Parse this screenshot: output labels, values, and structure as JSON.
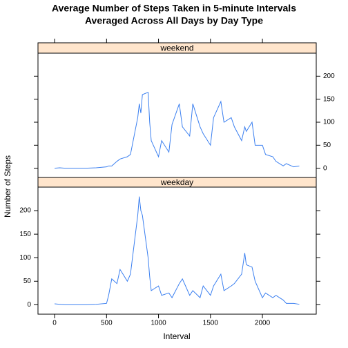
{
  "chart_data": {
    "type": "line",
    "title": [
      "Average Number of Steps Taken in 5-minute Intervals",
      "Averaged Across All Days by Day Type"
    ],
    "x_label": "Interval",
    "y_label": "Number of Steps",
    "layout": "panels",
    "x": [
      0,
      50,
      100,
      200,
      300,
      400,
      500,
      520,
      550,
      600,
      630,
      700,
      730,
      800,
      815,
      830,
      845,
      900,
      915,
      930,
      1000,
      1030,
      1100,
      1130,
      1200,
      1230,
      1300,
      1330,
      1400,
      1430,
      1500,
      1530,
      1600,
      1630,
      1700,
      1730,
      1800,
      1830,
      1845,
      1900,
      1930,
      2000,
      2030,
      2100,
      2130,
      2200,
      2230,
      2300,
      2355
    ],
    "series": [
      {
        "name": "weekend",
        "color": "#3a7ff0",
        "values": [
          0,
          1,
          0,
          0,
          0,
          1,
          3,
          5,
          5,
          15,
          20,
          25,
          30,
          110,
          140,
          120,
          160,
          165,
          100,
          60,
          25,
          60,
          35,
          95,
          140,
          90,
          70,
          140,
          90,
          75,
          50,
          110,
          145,
          100,
          110,
          90,
          60,
          90,
          80,
          100,
          50,
          50,
          30,
          25,
          15,
          5,
          10,
          3,
          5
        ]
      },
      {
        "name": "weekday",
        "color": "#3a7ff0",
        "values": [
          2,
          1,
          0,
          0,
          0,
          1,
          3,
          20,
          55,
          45,
          75,
          50,
          65,
          190,
          230,
          200,
          190,
          100,
          60,
          30,
          40,
          20,
          25,
          15,
          45,
          55,
          20,
          30,
          15,
          40,
          20,
          40,
          65,
          30,
          40,
          45,
          65,
          110,
          85,
          80,
          50,
          15,
          25,
          15,
          20,
          10,
          3,
          3,
          1
        ]
      }
    ],
    "strip_color": "#ffe5cc",
    "xlim": [
      -160,
      2518
    ],
    "xticks": [
      0,
      500,
      1000,
      1500,
      2000
    ],
    "ylim": [
      -20,
      250
    ],
    "yticks": [
      0,
      50,
      100,
      150,
      200
    ]
  }
}
